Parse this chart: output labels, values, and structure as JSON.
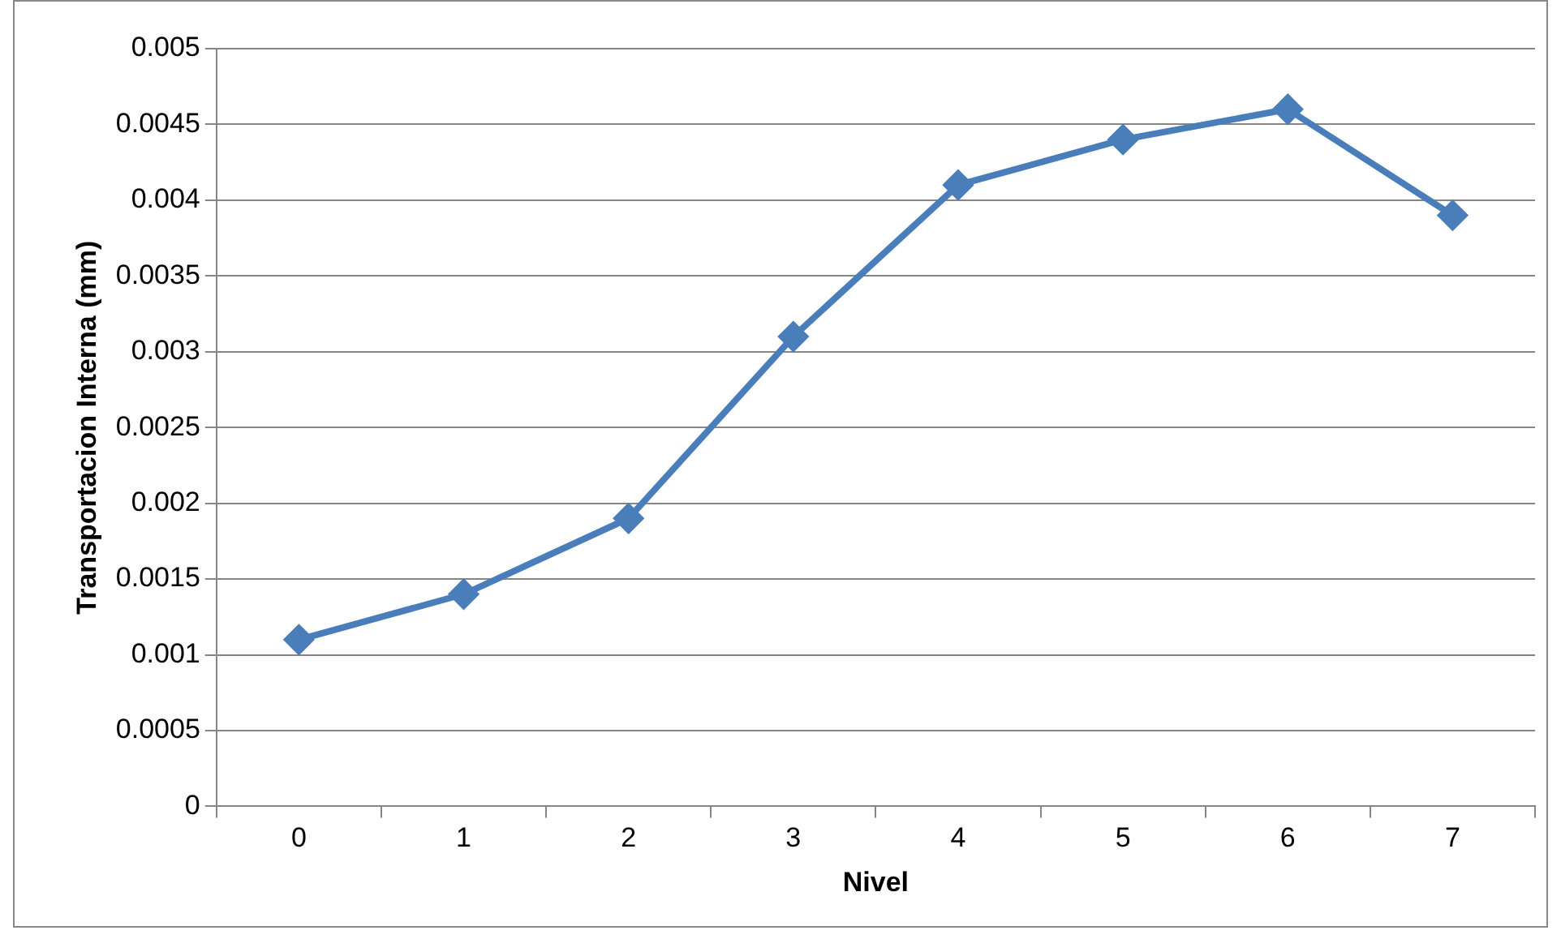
{
  "chart_data": {
    "type": "line",
    "xlabel": "Nivel",
    "ylabel": "Transportacion Interna (mm)",
    "categories": [
      "0",
      "1",
      "2",
      "3",
      "4",
      "5",
      "6",
      "7"
    ],
    "series": [
      {
        "color": "#4a7ebb",
        "values": [
          0.0011,
          0.0014,
          0.0019,
          0.0031,
          0.0041,
          0.0044,
          0.0046,
          0.0039
        ]
      }
    ],
    "ylim": [
      0,
      0.005
    ],
    "yticks": [
      0,
      0.0005,
      0.001,
      0.0015,
      0.002,
      0.0025,
      0.003,
      0.0035,
      0.004,
      0.0045,
      0.005
    ],
    "grid": "y",
    "marker": "diamond"
  }
}
